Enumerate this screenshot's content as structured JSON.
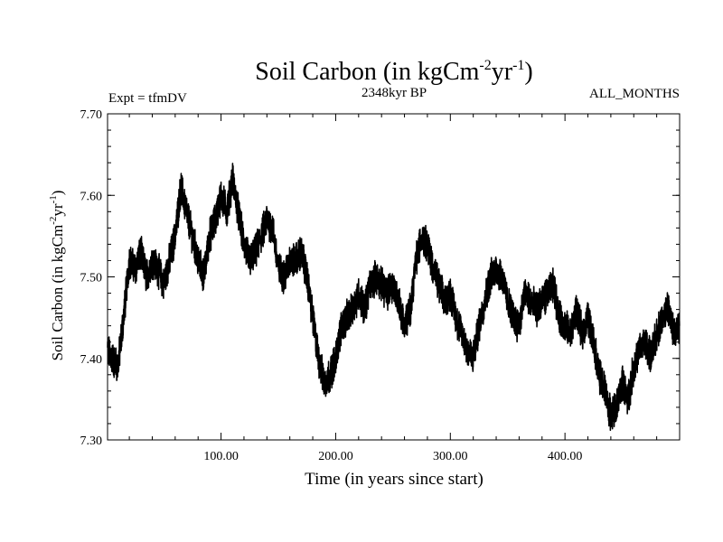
{
  "chart_data": {
    "type": "line",
    "title": "Soil Carbon (in kgCm",
    "title_exp1": "-2",
    "title_mid": "yr",
    "title_exp2": "-1",
    "title_end": ")",
    "subtitle_left": "Expt = tfmDV",
    "subtitle_center": "2348kyr BP",
    "subtitle_right": "ALL_MONTHS",
    "xlabel": "Time (in years since start)",
    "ylabel_base": "Soil Carbon (in kgCm",
    "ylabel_exp1": "-2",
    "ylabel_mid": "yr",
    "ylabel_exp2": "-1",
    "ylabel_end": ")",
    "xlim": [
      1,
      500
    ],
    "ylim": [
      7.3,
      7.7
    ],
    "xticks": [
      100,
      200,
      300,
      400
    ],
    "xtick_labels": [
      "100.00",
      "200.00",
      "300.00",
      "400.00"
    ],
    "yticks": [
      7.3,
      7.4,
      7.5,
      7.6,
      7.7
    ],
    "ytick_labels": [
      "7.30",
      "7.40",
      "7.50",
      "7.60",
      "7.70"
    ],
    "series": [
      {
        "name": "Soil Carbon",
        "color": "#000000",
        "x": [
          1,
          5,
          10,
          15,
          20,
          25,
          30,
          35,
          40,
          45,
          50,
          55,
          60,
          65,
          70,
          75,
          80,
          85,
          90,
          95,
          100,
          105,
          110,
          115,
          120,
          125,
          130,
          135,
          140,
          145,
          150,
          155,
          160,
          165,
          170,
          175,
          180,
          185,
          190,
          195,
          200,
          205,
          210,
          215,
          220,
          225,
          230,
          235,
          240,
          245,
          250,
          255,
          260,
          265,
          270,
          275,
          280,
          285,
          290,
          295,
          300,
          305,
          310,
          315,
          320,
          325,
          330,
          335,
          340,
          345,
          350,
          355,
          360,
          365,
          370,
          375,
          380,
          385,
          390,
          395,
          400,
          405,
          410,
          415,
          420,
          425,
          430,
          435,
          440,
          445,
          450,
          455,
          460,
          465,
          470,
          475,
          480,
          485,
          490,
          495,
          500
        ],
        "y": [
          7.41,
          7.4,
          7.39,
          7.45,
          7.52,
          7.51,
          7.53,
          7.5,
          7.52,
          7.51,
          7.49,
          7.52,
          7.55,
          7.61,
          7.58,
          7.55,
          7.52,
          7.5,
          7.55,
          7.57,
          7.6,
          7.58,
          7.62,
          7.58,
          7.54,
          7.52,
          7.53,
          7.55,
          7.57,
          7.56,
          7.51,
          7.5,
          7.52,
          7.52,
          7.53,
          7.5,
          7.45,
          7.4,
          7.37,
          7.38,
          7.4,
          7.44,
          7.45,
          7.46,
          7.48,
          7.46,
          7.49,
          7.5,
          7.49,
          7.48,
          7.49,
          7.47,
          7.44,
          7.46,
          7.52,
          7.55,
          7.54,
          7.51,
          7.49,
          7.47,
          7.48,
          7.45,
          7.43,
          7.41,
          7.4,
          7.44,
          7.47,
          7.5,
          7.51,
          7.5,
          7.47,
          7.45,
          7.44,
          7.48,
          7.47,
          7.46,
          7.47,
          7.48,
          7.49,
          7.45,
          7.44,
          7.43,
          7.46,
          7.43,
          7.45,
          7.42,
          7.38,
          7.36,
          7.33,
          7.34,
          7.37,
          7.35,
          7.39,
          7.41,
          7.42,
          7.4,
          7.43,
          7.45,
          7.46,
          7.43,
          7.44
        ]
      }
    ]
  }
}
